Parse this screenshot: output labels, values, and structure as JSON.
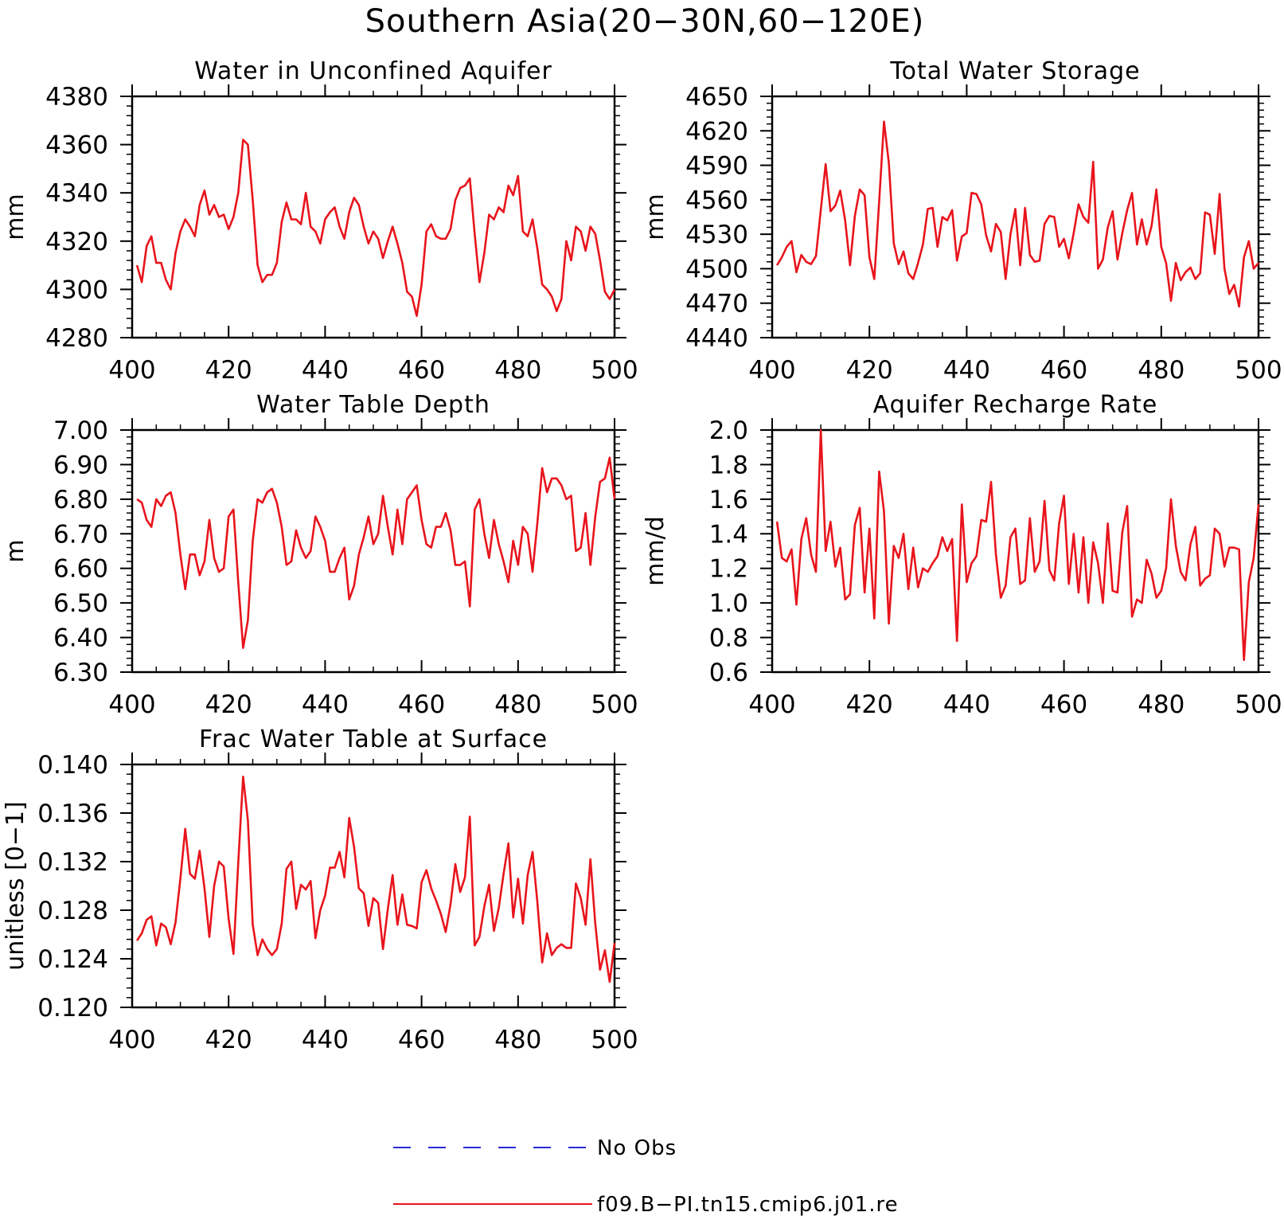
{
  "figure": {
    "title": "Southern Asia(20−30N,60−120E)",
    "legend": [
      {
        "label": "No Obs",
        "color": "#2a2ad8",
        "dash": true
      },
      {
        "label": "f09.B−PI.tn15.cmip6.j01.re",
        "color": "#e8141c",
        "dash": false
      }
    ]
  },
  "chart_data": [
    {
      "type": "line",
      "title": "Water in Unconfined Aquifer",
      "ylabel": "mm",
      "xlim": [
        400,
        500
      ],
      "ylim": [
        4280,
        4380
      ],
      "yticks": [
        "4280",
        "4300",
        "4320",
        "4340",
        "4360",
        "4380"
      ],
      "xticks": [
        "400",
        "420",
        "440",
        "460",
        "480",
        "500"
      ],
      "series": [
        {
          "color": "#e8141c",
          "x_start": 401,
          "values": [
            4310,
            4303,
            4318,
            4322,
            4311,
            4311,
            4304,
            4300,
            4315,
            4324,
            4329,
            4326,
            4322,
            4335,
            4341,
            4331,
            4335,
            4330,
            4331,
            4325,
            4330,
            4340,
            4362,
            4360,
            4337,
            4310,
            4303,
            4306,
            4306,
            4311,
            4328,
            4336,
            4329,
            4329,
            4327,
            4340,
            4326,
            4324,
            4319,
            4329,
            4332,
            4334,
            4326,
            4321,
            4332,
            4338,
            4335,
            4326,
            4319,
            4324,
            4321,
            4313,
            4320,
            4326,
            4319,
            4311,
            4299,
            4297,
            4289,
            4302,
            4324,
            4327,
            4322,
            4321,
            4321,
            4325,
            4337,
            4342,
            4343,
            4346,
            4323,
            4303,
            4315,
            4331,
            4329,
            4334,
            4332,
            4343,
            4339,
            4347,
            4324,
            4322,
            4329,
            4317,
            4302,
            4300,
            4297,
            4291,
            4296,
            4320,
            4312,
            4326,
            4324,
            4316,
            4326,
            4323,
            4312,
            4299,
            4296,
            4300
          ]
        }
      ]
    },
    {
      "type": "line",
      "title": "Total Water Storage",
      "ylabel": "mm",
      "xlim": [
        400,
        500
      ],
      "ylim": [
        4440,
        4650
      ],
      "yticks": [
        "4440",
        "4470",
        "4500",
        "4530",
        "4560",
        "4590",
        "4620",
        "4650"
      ],
      "xticks": [
        "400",
        "420",
        "440",
        "460",
        "480",
        "500"
      ],
      "series": [
        {
          "color": "#e8141c",
          "x_start": 401,
          "values": [
            4503,
            4510,
            4519,
            4524,
            4497,
            4512,
            4506,
            4504,
            4511,
            4551,
            4591,
            4550,
            4555,
            4568,
            4542,
            4503,
            4546,
            4569,
            4564,
            4510,
            4491,
            4558,
            4628,
            4592,
            4522,
            4504,
            4515,
            4496,
            4491,
            4505,
            4521,
            4552,
            4553,
            4519,
            4545,
            4542,
            4551,
            4507,
            4528,
            4531,
            4566,
            4565,
            4556,
            4529,
            4515,
            4539,
            4532,
            4491,
            4530,
            4552,
            4503,
            4553,
            4512,
            4506,
            4507,
            4539,
            4546,
            4545,
            4519,
            4526,
            4509,
            4531,
            4556,
            4545,
            4540,
            4593,
            4500,
            4508,
            4536,
            4550,
            4508,
            4531,
            4551,
            4566,
            4521,
            4543,
            4521,
            4537,
            4569,
            4519,
            4505,
            4472,
            4505,
            4490,
            4497,
            4501,
            4491,
            4496,
            4549,
            4547,
            4513,
            4565,
            4500,
            4478,
            4486,
            4467,
            4510,
            4524,
            4500,
            4505
          ]
        }
      ]
    },
    {
      "type": "line",
      "title": "Water Table Depth",
      "ylabel": "m",
      "xlim": [
        400,
        500
      ],
      "ylim": [
        6.3,
        7.0
      ],
      "yticks": [
        "6.30",
        "6.40",
        "6.50",
        "6.60",
        "6.70",
        "6.80",
        "6.90",
        "7.00"
      ],
      "xticks": [
        "400",
        "420",
        "440",
        "460",
        "480",
        "500"
      ],
      "series": [
        {
          "color": "#e8141c",
          "x_start": 401,
          "values": [
            6.8,
            6.79,
            6.74,
            6.72,
            6.8,
            6.78,
            6.81,
            6.82,
            6.76,
            6.64,
            6.54,
            6.64,
            6.64,
            6.58,
            6.62,
            6.74,
            6.63,
            6.59,
            6.6,
            6.75,
            6.77,
            6.56,
            6.37,
            6.45,
            6.68,
            6.8,
            6.79,
            6.82,
            6.83,
            6.79,
            6.72,
            6.61,
            6.62,
            6.71,
            6.66,
            6.63,
            6.65,
            6.75,
            6.72,
            6.68,
            6.59,
            6.59,
            6.63,
            6.66,
            6.51,
            6.55,
            6.64,
            6.69,
            6.75,
            6.67,
            6.7,
            6.81,
            6.72,
            6.64,
            6.77,
            6.67,
            6.8,
            6.82,
            6.84,
            6.74,
            6.67,
            6.66,
            6.72,
            6.72,
            6.76,
            6.71,
            6.61,
            6.61,
            6.62,
            6.49,
            6.77,
            6.8,
            6.7,
            6.63,
            6.74,
            6.67,
            6.62,
            6.56,
            6.68,
            6.61,
            6.72,
            6.7,
            6.59,
            6.73,
            6.89,
            6.82,
            6.86,
            6.86,
            6.84,
            6.8,
            6.81,
            6.65,
            6.66,
            6.76,
            6.61,
            6.75,
            6.85,
            6.86,
            6.92,
            6.8
          ]
        }
      ]
    },
    {
      "type": "line",
      "title": "Aquifer Recharge Rate",
      "ylabel": "mm/d",
      "xlim": [
        400,
        500
      ],
      "ylim": [
        0.6,
        2.0
      ],
      "yticks": [
        "0.6",
        "0.8",
        "1.0",
        "1.2",
        "1.4",
        "1.6",
        "1.8",
        "2.0"
      ],
      "xticks": [
        "400",
        "420",
        "440",
        "460",
        "480",
        "500"
      ],
      "series": [
        {
          "color": "#e8141c",
          "x_start": 401,
          "values": [
            1.47,
            1.26,
            1.24,
            1.31,
            0.99,
            1.37,
            1.49,
            1.28,
            1.18,
            2.0,
            1.3,
            1.47,
            1.21,
            1.32,
            1.02,
            1.05,
            1.45,
            1.55,
            1.06,
            1.43,
            0.91,
            1.76,
            1.53,
            0.88,
            1.33,
            1.26,
            1.4,
            1.08,
            1.32,
            1.09,
            1.2,
            1.18,
            1.23,
            1.27,
            1.38,
            1.3,
            1.37,
            0.78,
            1.57,
            1.12,
            1.23,
            1.27,
            1.48,
            1.47,
            1.7,
            1.28,
            1.03,
            1.1,
            1.38,
            1.43,
            1.11,
            1.13,
            1.49,
            1.18,
            1.24,
            1.59,
            1.19,
            1.13,
            1.46,
            1.62,
            1.11,
            1.4,
            1.06,
            1.38,
            1.0,
            1.35,
            1.23,
            1.0,
            1.46,
            1.07,
            1.06,
            1.41,
            1.56,
            0.92,
            1.02,
            1.0,
            1.25,
            1.17,
            1.03,
            1.07,
            1.2,
            1.6,
            1.33,
            1.18,
            1.13,
            1.34,
            1.44,
            1.1,
            1.14,
            1.16,
            1.43,
            1.4,
            1.21,
            1.32,
            1.32,
            1.31,
            0.67,
            1.12,
            1.26,
            1.57
          ]
        }
      ]
    },
    {
      "type": "line",
      "title": "Frac Water Table at Surface",
      "ylabel": "unitless [0−1]",
      "xlim": [
        400,
        500
      ],
      "ylim": [
        0.12,
        0.14
      ],
      "yticks": [
        "0.120",
        "0.124",
        "0.128",
        "0.132",
        "0.136",
        "0.140"
      ],
      "xticks": [
        "400",
        "420",
        "440",
        "460",
        "480",
        "500"
      ],
      "series": [
        {
          "color": "#e8141c",
          "x_start": 401,
          "values": [
            0.1255,
            0.1261,
            0.1272,
            0.1275,
            0.1251,
            0.1269,
            0.1266,
            0.1252,
            0.127,
            0.1306,
            0.1347,
            0.131,
            0.1306,
            0.1329,
            0.1298,
            0.1258,
            0.13,
            0.132,
            0.1316,
            0.1273,
            0.1244,
            0.1319,
            0.139,
            0.1354,
            0.1268,
            0.1243,
            0.1256,
            0.1248,
            0.1243,
            0.1248,
            0.1269,
            0.1314,
            0.132,
            0.1281,
            0.1301,
            0.1297,
            0.1304,
            0.1257,
            0.128,
            0.1292,
            0.1315,
            0.1315,
            0.1328,
            0.1307,
            0.1356,
            0.1332,
            0.1298,
            0.1294,
            0.1267,
            0.129,
            0.1286,
            0.1248,
            0.1281,
            0.1309,
            0.1268,
            0.1293,
            0.1268,
            0.1267,
            0.1265,
            0.1303,
            0.1313,
            0.1298,
            0.1288,
            0.1277,
            0.1262,
            0.1285,
            0.1318,
            0.1295,
            0.1307,
            0.1357,
            0.1251,
            0.1258,
            0.1283,
            0.1301,
            0.1263,
            0.1282,
            0.131,
            0.1335,
            0.1274,
            0.1306,
            0.1269,
            0.1309,
            0.1328,
            0.1287,
            0.1237,
            0.1261,
            0.1243,
            0.1249,
            0.1252,
            0.1249,
            0.1249,
            0.1302,
            0.129,
            0.1268,
            0.1322,
            0.1269,
            0.1231,
            0.1247,
            0.1221,
            0.1253
          ]
        }
      ]
    }
  ]
}
